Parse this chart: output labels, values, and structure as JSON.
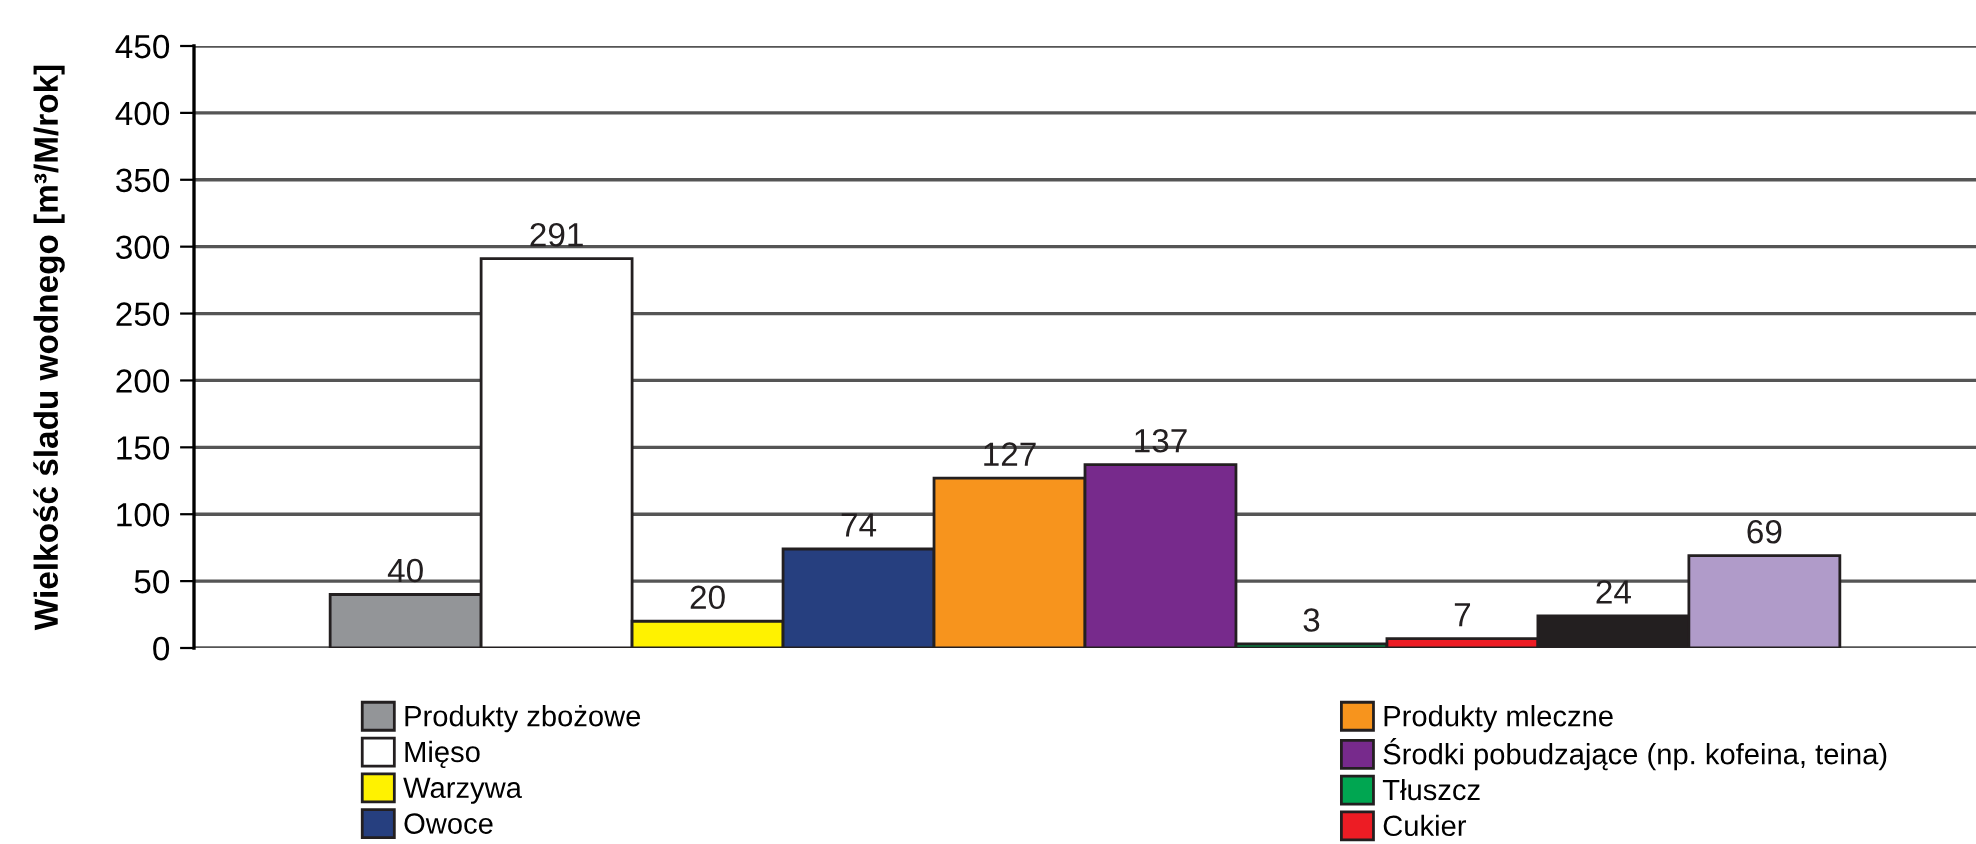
{
  "chart_data": {
    "type": "bar",
    "ylabel": "Wielkość śladu wodnego [m³/M/rok]",
    "categories": [
      null
    ],
    "series": [
      {
        "name": "Produkty zbożowe",
        "color": "#939598",
        "values": [
          40
        ]
      },
      {
        "name": "Mięso",
        "color": "#ffffff",
        "values": [
          291
        ]
      },
      {
        "name": "Warzywa",
        "color": "#fff200",
        "values": [
          20
        ]
      },
      {
        "name": "Owoce",
        "color": "#263f7f",
        "values": [
          74
        ]
      },
      {
        "name": "Produkty mleczne",
        "color": "#f7941d",
        "values": [
          127
        ]
      },
      {
        "name": "Środki pobudzające (np. kofeina, teina)",
        "color": "#772a8c",
        "values": [
          137
        ]
      },
      {
        "name": "Tłuszcz",
        "color": "#00a651",
        "values": [
          3
        ]
      },
      {
        "name": "Cukier",
        "color": "#ed1c24",
        "values": [
          7
        ]
      },
      {
        "color": "#231f20",
        "values": [
          24
        ]
      },
      {
        "color": "#b09bc9",
        "values": [
          69
        ]
      }
    ],
    "ylim": [
      0,
      450
    ],
    "yticks": [
      0,
      50,
      100,
      150,
      200,
      250,
      300,
      350,
      400,
      450
    ],
    "grid": "y",
    "legend": "bottom",
    "data_labels": true
  }
}
